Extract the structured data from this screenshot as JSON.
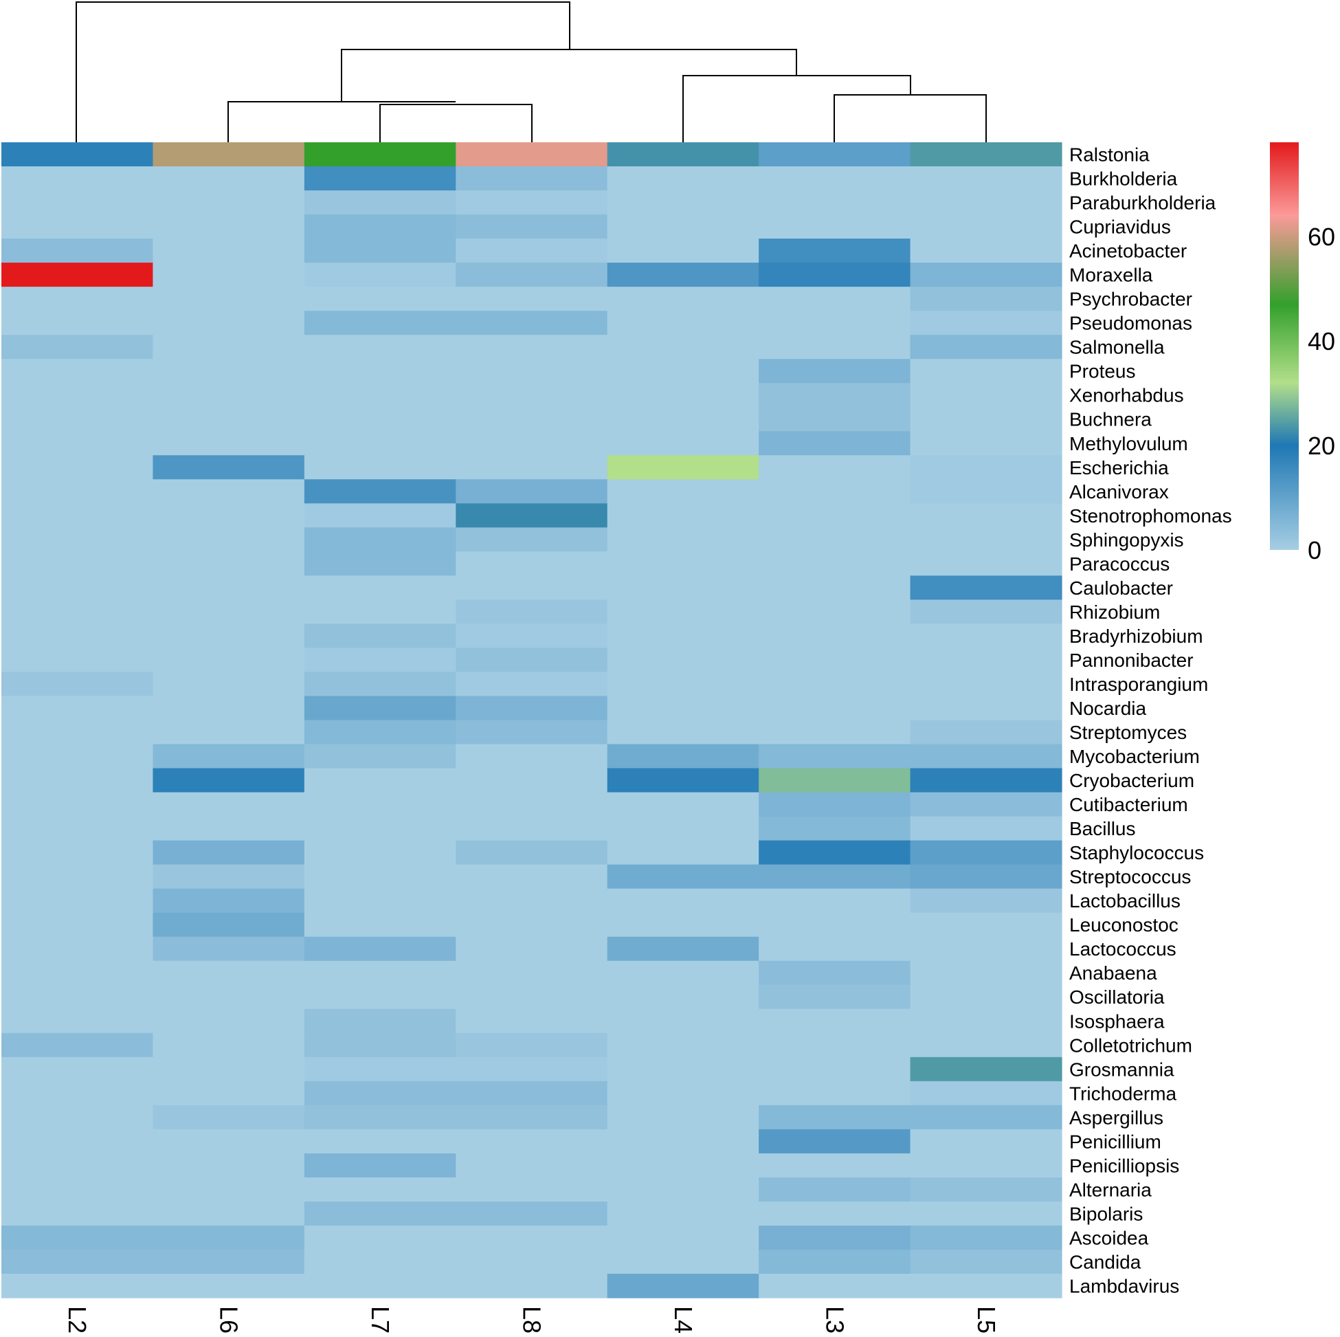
{
  "chart_data": {
    "type": "heatmap",
    "title": "",
    "columns": [
      "L2",
      "L6",
      "L7",
      "L8",
      "L4",
      "L3",
      "L5"
    ],
    "rows": [
      "Ralstonia",
      "Burkholderia",
      "Paraburkholderia",
      "Cupriavidus",
      "Acinetobacter",
      "Moraxella",
      "Psychrobacter",
      "Pseudomonas",
      "Salmonella",
      "Proteus",
      "Xenorhabdus",
      "Buchnera",
      "Methylovulum",
      "Escherichia",
      "Alcanivorax",
      "Stenotrophomonas",
      "Sphingopyxis",
      "Paracoccus",
      "Caulobacter",
      "Rhizobium",
      "Bradyrhizobium",
      "Pannonibacter",
      "Intrasporangium",
      "Nocardia",
      "Streptomyces",
      "Mycobacterium",
      "Cryobacterium",
      "Cutibacterium",
      "Bacillus",
      "Staphylococcus",
      "Streptococcus",
      "Lactobacillus",
      "Leuconostoc",
      "Lactococcus",
      "Anabaena",
      "Oscillatoria",
      "Isosphaera",
      "Colletotrichum",
      "Grosmannia",
      "Trichoderma",
      "Aspergillus",
      "Penicillium",
      "Penicilliopsis",
      "Alternaria",
      "Bipolaris",
      "Ascoidea",
      "Candida",
      "Lambdavirus"
    ],
    "values": [
      [
        18,
        58,
        47,
        62,
        23,
        11,
        24
      ],
      [
        0,
        0,
        15,
        4,
        0,
        0,
        0
      ],
      [
        0,
        0,
        2,
        1,
        0,
        0,
        0
      ],
      [
        0,
        0,
        5,
        4,
        0,
        0,
        0
      ],
      [
        4,
        0,
        5,
        1,
        0,
        15,
        0
      ],
      [
        78,
        0,
        1,
        4,
        13,
        17,
        6
      ],
      [
        0,
        0,
        0,
        0,
        0,
        0,
        3
      ],
      [
        0,
        0,
        5,
        5,
        0,
        0,
        1
      ],
      [
        3,
        0,
        0,
        0,
        0,
        0,
        5
      ],
      [
        0,
        0,
        0,
        0,
        0,
        6,
        0
      ],
      [
        0,
        0,
        0,
        0,
        0,
        3,
        0
      ],
      [
        0,
        0,
        0,
        0,
        0,
        3,
        0
      ],
      [
        0,
        0,
        0,
        0,
        0,
        6,
        0
      ],
      [
        0,
        13,
        0,
        0,
        32,
        0,
        1
      ],
      [
        0,
        0,
        14,
        7,
        0,
        0,
        1
      ],
      [
        0,
        0,
        1,
        22,
        0,
        0,
        0
      ],
      [
        0,
        0,
        5,
        3,
        0,
        0,
        0
      ],
      [
        0,
        0,
        5,
        0,
        0,
        0,
        0
      ],
      [
        0,
        0,
        0,
        0,
        0,
        0,
        15
      ],
      [
        0,
        0,
        0,
        2,
        0,
        0,
        2
      ],
      [
        0,
        0,
        3,
        1,
        0,
        0,
        0
      ],
      [
        0,
        0,
        1,
        3,
        0,
        0,
        0
      ],
      [
        2,
        0,
        3,
        1,
        0,
        0,
        0
      ],
      [
        0,
        0,
        9,
        6,
        0,
        0,
        0
      ],
      [
        0,
        0,
        5,
        4,
        0,
        0,
        2
      ],
      [
        0,
        5,
        3,
        0,
        8,
        5,
        5
      ],
      [
        0,
        18,
        0,
        0,
        18,
        28,
        18
      ],
      [
        0,
        0,
        0,
        0,
        0,
        6,
        4
      ],
      [
        0,
        0,
        0,
        0,
        0,
        5,
        1
      ],
      [
        0,
        7,
        0,
        3,
        0,
        18,
        11
      ],
      [
        0,
        2,
        0,
        0,
        8,
        8,
        9
      ],
      [
        0,
        6,
        0,
        0,
        0,
        0,
        2
      ],
      [
        0,
        8,
        0,
        0,
        0,
        0,
        0
      ],
      [
        0,
        4,
        6,
        0,
        8,
        0,
        0
      ],
      [
        0,
        0,
        0,
        0,
        0,
        4,
        0
      ],
      [
        0,
        0,
        0,
        0,
        0,
        3,
        0
      ],
      [
        0,
        0,
        3,
        0,
        0,
        0,
        0
      ],
      [
        4,
        0,
        3,
        2,
        0,
        0,
        0
      ],
      [
        0,
        0,
        1,
        1,
        0,
        0,
        24
      ],
      [
        0,
        0,
        4,
        4,
        0,
        0,
        1
      ],
      [
        0,
        2,
        3,
        3,
        0,
        5,
        5
      ],
      [
        0,
        0,
        0,
        0,
        0,
        12,
        0
      ],
      [
        0,
        0,
        6,
        0,
        0,
        0,
        0
      ],
      [
        0,
        0,
        0,
        0,
        0,
        4,
        3
      ],
      [
        0,
        0,
        4,
        4,
        0,
        0,
        0
      ],
      [
        5,
        5,
        0,
        0,
        0,
        7,
        5
      ],
      [
        4,
        4,
        0,
        0,
        0,
        5,
        3
      ],
      [
        0,
        0,
        0,
        0,
        9,
        0,
        0
      ]
    ],
    "color_scale": {
      "stops": [
        {
          "value": 0,
          "color": "#a6cee3"
        },
        {
          "value": 20,
          "color": "#1f78b4"
        },
        {
          "value": 32,
          "color": "#b2df8a"
        },
        {
          "value": 47,
          "color": "#33a02c"
        },
        {
          "value": 64,
          "color": "#fb9a99"
        },
        {
          "value": 78,
          "color": "#e31a1c"
        }
      ],
      "ticks": [
        "0",
        "20",
        "40",
        "60"
      ],
      "tick_values": [
        0,
        20,
        40,
        60
      ],
      "range": [
        0,
        78
      ]
    },
    "legend_position": "right",
    "column_dendrogram": "L2 | ((L6, (L7, L8)), (L4, (L3, L5)))"
  }
}
